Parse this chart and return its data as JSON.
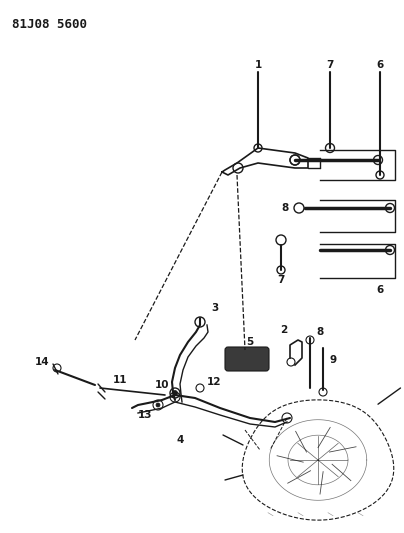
{
  "title": "81J08 5600",
  "bg_color": "#ffffff",
  "line_color": "#1a1a1a",
  "figsize": [
    4.04,
    5.33
  ],
  "dpi": 100,
  "label_fontsize": 7.5,
  "title_fontsize": 9
}
